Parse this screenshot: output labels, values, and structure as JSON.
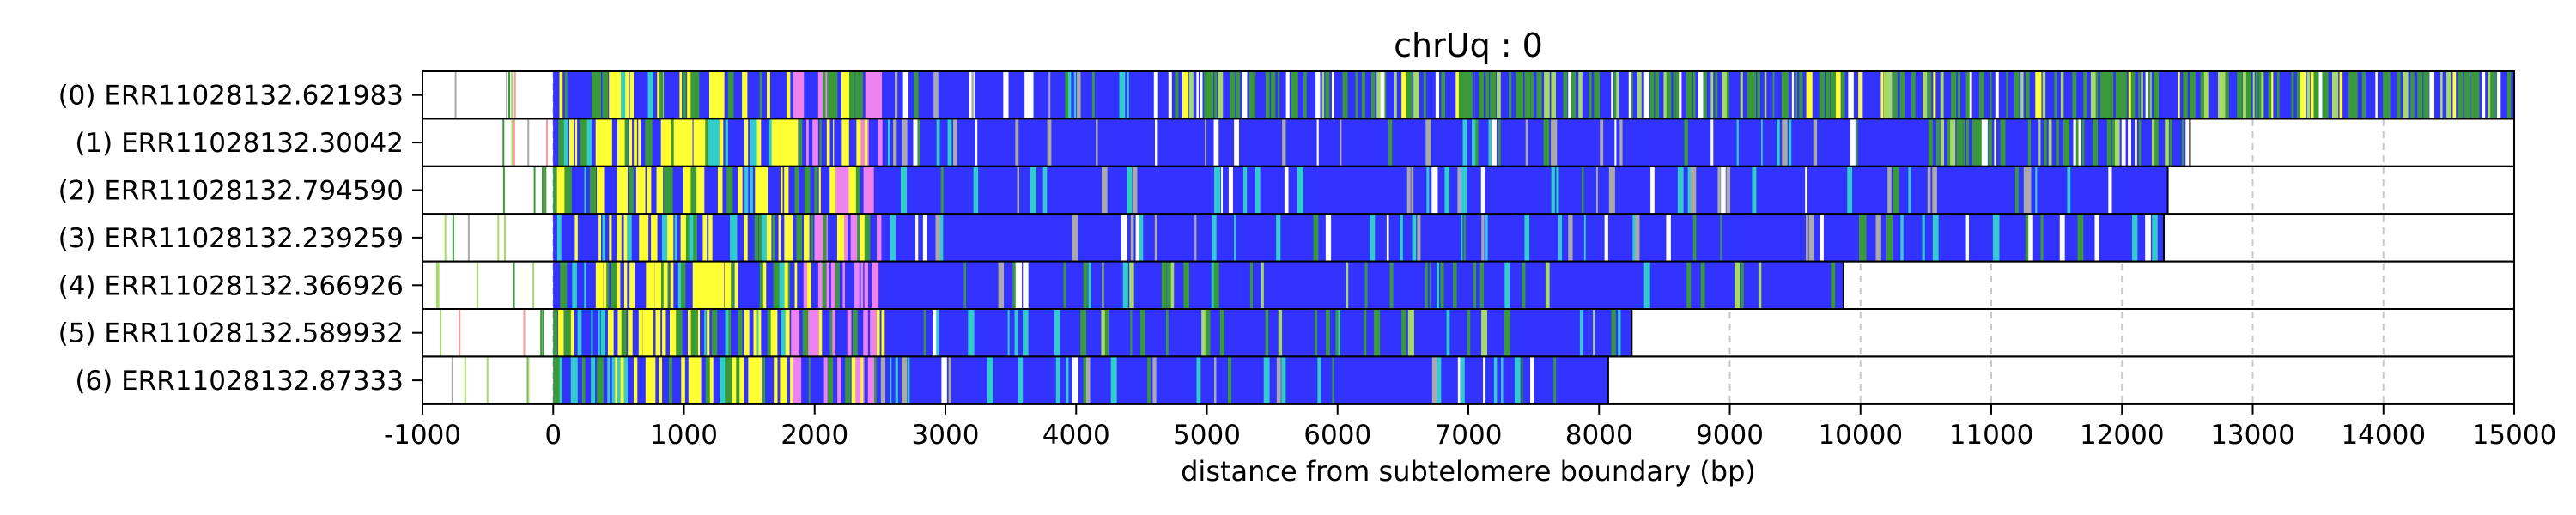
{
  "chart_data": {
    "type": "heatmap",
    "title": "chrUq : 0",
    "xlabel": "distance from subtelomere boundary (bp)",
    "xlim": [
      -1000,
      15000
    ],
    "x_ticks": [
      -1000,
      0,
      1000,
      2000,
      3000,
      4000,
      5000,
      6000,
      7000,
      8000,
      9000,
      10000,
      11000,
      12000,
      13000,
      14000,
      15000
    ],
    "x_tick_labels": [
      "-1000",
      "0",
      "1000",
      "2000",
      "3000",
      "4000",
      "5000",
      "6000",
      "7000",
      "8000",
      "9000",
      "10000",
      "11000",
      "12000",
      "13000",
      "14000",
      "15000"
    ],
    "grid": "vertical dashed gridlines at x ticks",
    "reads": [
      {
        "label": "(0) ERR11028132.621983",
        "end": 15000,
        "profile": "mixed_long"
      },
      {
        "label": "(1) ERR11028132.30042",
        "end": 12520,
        "profile": "mixed_tail"
      },
      {
        "label": "(2) ERR11028132.794590",
        "end": 12350,
        "profile": "blue"
      },
      {
        "label": "(3) ERR11028132.239259",
        "end": 12320,
        "profile": "blue"
      },
      {
        "label": "(4) ERR11028132.366926",
        "end": 9870,
        "profile": "blue_green"
      },
      {
        "label": "(5) ERR11028132.589932",
        "end": 8250,
        "profile": "blue_green"
      },
      {
        "label": "(6) ERR11028132.87333",
        "end": 8070,
        "profile": "blue"
      }
    ],
    "colors": {
      "blue": "#3333ff",
      "yellow": "#ffff33",
      "green": "#3a9a3a",
      "light_green": "#a6d96a",
      "violet": "#ee82ee",
      "cyan": "#33cccc",
      "gray": "#aaaaaa",
      "pink": "#ff9999",
      "white": "#ffffff"
    }
  }
}
